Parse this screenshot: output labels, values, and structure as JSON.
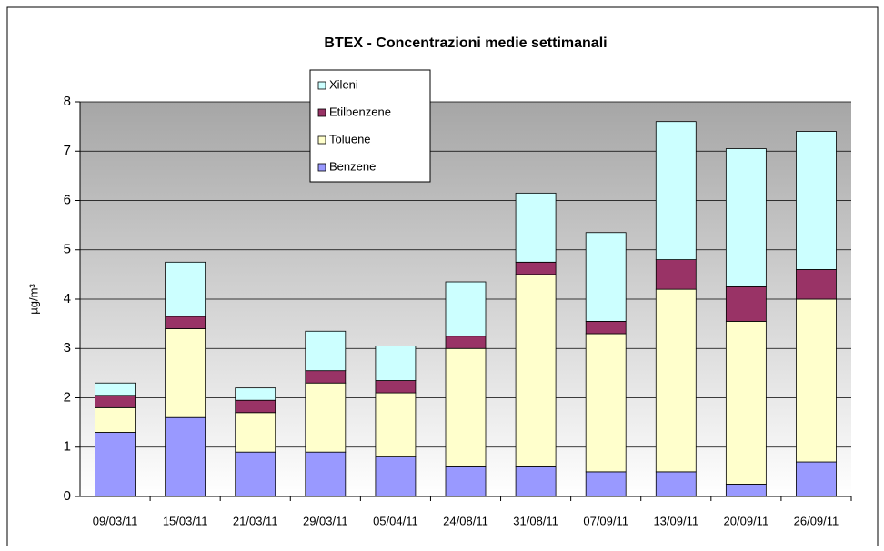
{
  "chart_data": {
    "type": "stacked_bar",
    "title": "BTEX - Concentrazioni medie settimanali",
    "y_label": "µg/m³",
    "categories": [
      "09/03/11",
      "15/03/11",
      "21/03/11",
      "29/03/11",
      "05/04/11",
      "24/08/11",
      "31/08/11",
      "07/09/11",
      "13/09/11",
      "20/09/11",
      "26/09/11"
    ],
    "series": [
      {
        "name": "Benzene",
        "color": "#9999ff",
        "values": [
          1.3,
          1.6,
          0.9,
          0.9,
          0.8,
          0.6,
          0.6,
          0.5,
          0.5,
          0.25,
          0.7
        ]
      },
      {
        "name": "Toluene",
        "color": "#ffffcc",
        "values": [
          0.5,
          1.8,
          0.8,
          1.4,
          1.3,
          2.4,
          3.9,
          2.8,
          3.7,
          3.3,
          3.3
        ]
      },
      {
        "name": "Etilbenzene",
        "color": "#993366",
        "values": [
          0.25,
          0.25,
          0.25,
          0.25,
          0.25,
          0.25,
          0.25,
          0.25,
          0.6,
          0.7,
          0.6
        ]
      },
      {
        "name": "Xileni",
        "color": "#ccffff",
        "values": [
          0.25,
          1.1,
          0.25,
          0.8,
          0.7,
          1.1,
          1.4,
          1.8,
          2.8,
          2.8,
          2.8
        ]
      }
    ],
    "ylim": [
      0,
      8
    ],
    "yticks": [
      0,
      1,
      2,
      3,
      4,
      5,
      6,
      7,
      8
    ],
    "grid": true
  }
}
